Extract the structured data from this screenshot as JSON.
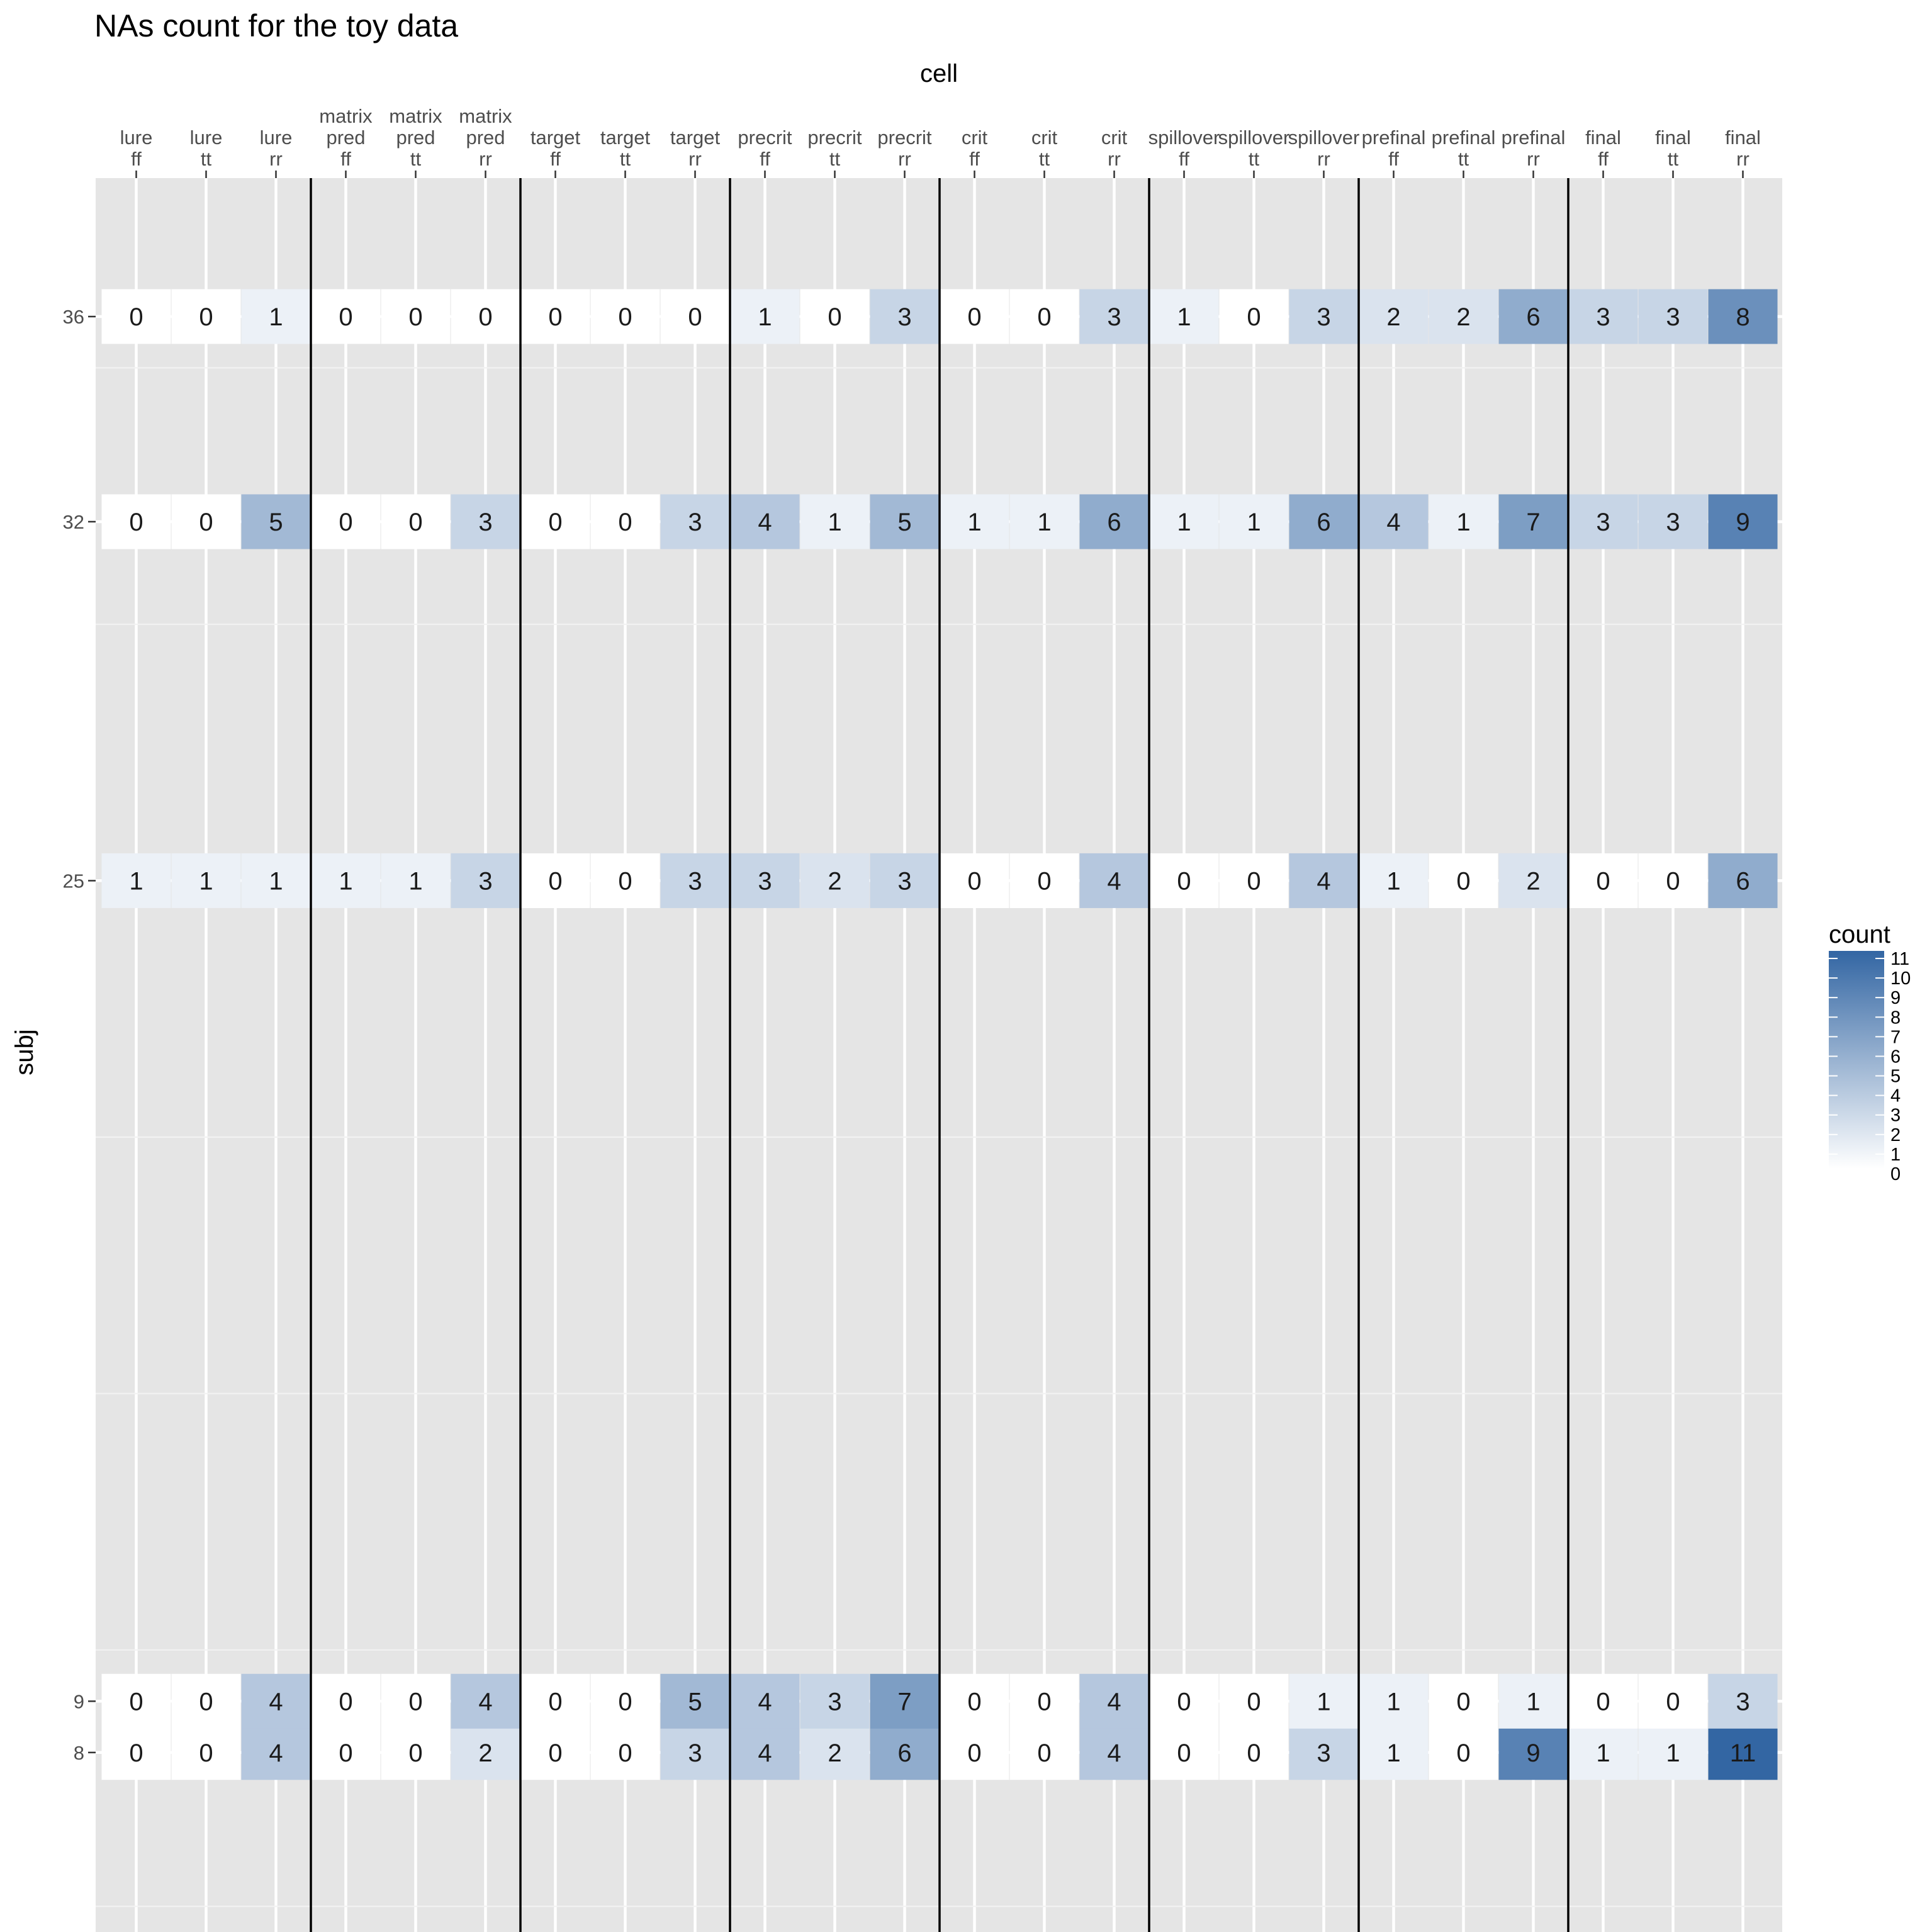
{
  "chart_data": {
    "type": "heatmap",
    "title": "NAs count for the toy data",
    "xlabel": "cell",
    "ylabel": "subj",
    "x_axis_position": "top",
    "x_categories": [
      [
        "lure",
        "ff"
      ],
      [
        "lure",
        "tt"
      ],
      [
        "lure",
        "rr"
      ],
      [
        "matrix",
        "pred",
        "ff"
      ],
      [
        "matrix",
        "pred",
        "tt"
      ],
      [
        "matrix",
        "pred",
        "rr"
      ],
      [
        "target",
        "ff"
      ],
      [
        "target",
        "tt"
      ],
      [
        "target",
        "rr"
      ],
      [
        "precrit",
        "ff"
      ],
      [
        "precrit",
        "tt"
      ],
      [
        "precrit",
        "rr"
      ],
      [
        "crit",
        "ff"
      ],
      [
        "crit",
        "tt"
      ],
      [
        "crit",
        "rr"
      ],
      [
        "spillover",
        "ff"
      ],
      [
        "spillover",
        "tt"
      ],
      [
        "spillover",
        "rr"
      ],
      [
        "prefinal",
        "ff"
      ],
      [
        "prefinal",
        "tt"
      ],
      [
        "prefinal",
        "rr"
      ],
      [
        "final",
        "ff"
      ],
      [
        "final",
        "tt"
      ],
      [
        "final",
        "rr"
      ]
    ],
    "y_axis": {
      "type": "continuous",
      "range": [
        4.5,
        38.7
      ],
      "ticks": [
        8,
        9,
        25,
        32,
        36
      ]
    },
    "rows": [
      {
        "subj": 8,
        "values": [
          0,
          0,
          4,
          0,
          0,
          2,
          0,
          0,
          3,
          4,
          2,
          6,
          0,
          0,
          4,
          0,
          0,
          3,
          1,
          0,
          9,
          1,
          1,
          11
        ]
      },
      {
        "subj": 9,
        "values": [
          0,
          0,
          4,
          0,
          0,
          4,
          0,
          0,
          5,
          4,
          3,
          7,
          0,
          0,
          4,
          0,
          0,
          1,
          1,
          0,
          1,
          0,
          0,
          3
        ]
      },
      {
        "subj": 25,
        "values": [
          1,
          1,
          1,
          1,
          1,
          3,
          0,
          0,
          3,
          3,
          2,
          3,
          0,
          0,
          4,
          0,
          0,
          4,
          1,
          0,
          2,
          0,
          0,
          6
        ]
      },
      {
        "subj": 32,
        "values": [
          0,
          0,
          5,
          0,
          0,
          3,
          0,
          0,
          3,
          4,
          1,
          5,
          1,
          1,
          6,
          1,
          1,
          6,
          4,
          1,
          7,
          3,
          3,
          9
        ]
      },
      {
        "subj": 36,
        "values": [
          0,
          0,
          1,
          0,
          0,
          0,
          0,
          0,
          0,
          1,
          0,
          3,
          0,
          0,
          3,
          1,
          0,
          3,
          2,
          2,
          6,
          3,
          3,
          8
        ]
      }
    ],
    "separators_after_column": [
      3,
      6,
      9,
      12,
      15,
      18,
      21
    ],
    "legend": {
      "title": "count",
      "position": "right",
      "range": [
        0,
        11
      ],
      "labels": [
        "11",
        "10",
        "9",
        "8",
        "7",
        "6",
        "5",
        "4",
        "3",
        "2",
        "1",
        "0"
      ],
      "color_low": "#ffffff",
      "color_high": "#3366a3"
    },
    "panel_background": "#e5e5e5",
    "grid": true
  }
}
